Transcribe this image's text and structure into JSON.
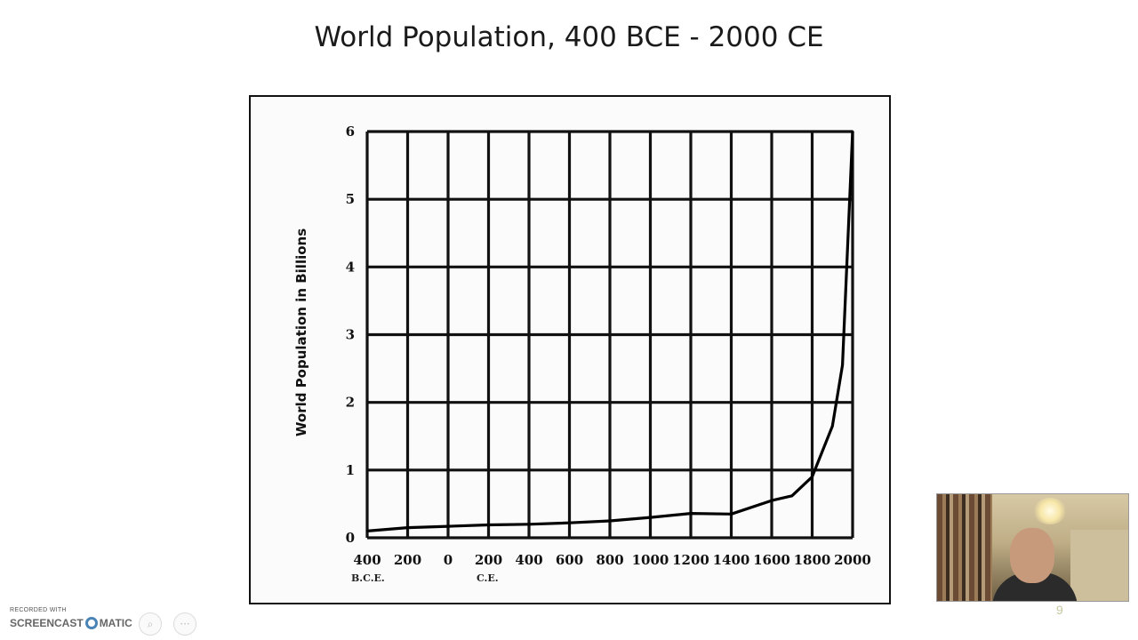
{
  "slide": {
    "title": "World Population, 400 BCE - 2000 CE",
    "number": "9"
  },
  "chart_data": {
    "type": "line",
    "title": "",
    "xlabel": "",
    "ylabel": "World Population in Billions",
    "xlim": [
      -400,
      2000
    ],
    "ylim": [
      0,
      6
    ],
    "x_tick_labels": [
      "400",
      "200",
      "0",
      "200",
      "400",
      "600",
      "800",
      "1000",
      "1200",
      "1400",
      "1600",
      "1800",
      "2000"
    ],
    "y_tick_labels": [
      "0",
      "1",
      "2",
      "3",
      "4",
      "5",
      "6"
    ],
    "era_labels": {
      "bce": "B.C.E.",
      "ce": "C.E."
    },
    "grid": true,
    "series": [
      {
        "x": [
          -400,
          -200,
          0,
          200,
          400,
          600,
          800,
          1000,
          1200,
          1400,
          1600,
          1700,
          1800,
          1900,
          1950,
          2000
        ],
        "values": [
          0.1,
          0.15,
          0.17,
          0.19,
          0.2,
          0.22,
          0.25,
          0.3,
          0.36,
          0.35,
          0.55,
          0.62,
          0.9,
          1.65,
          2.55,
          6.0
        ]
      }
    ]
  },
  "recording": {
    "recorded_with": "RECORDED WITH",
    "brand_left": "SCREENCAST",
    "brand_right": "MATIC"
  },
  "colors": {
    "grid": "#111111",
    "line": "#000000",
    "logo": "#4a84b6"
  }
}
